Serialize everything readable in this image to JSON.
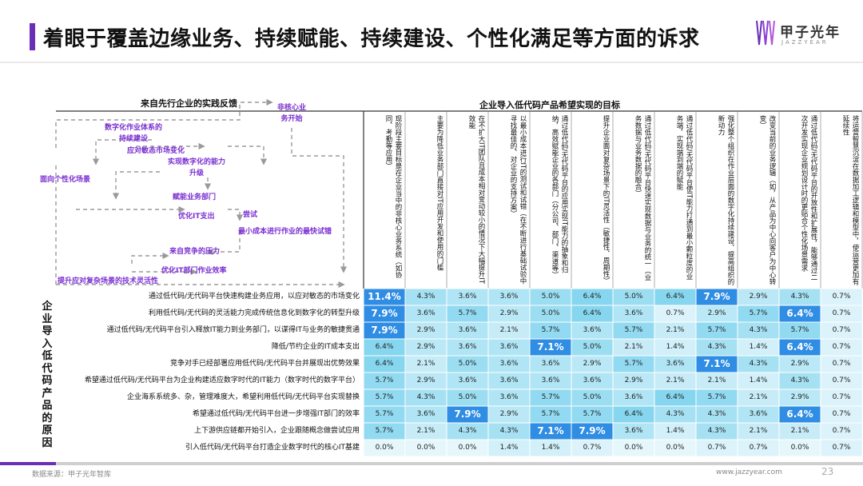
{
  "page": {
    "title": "着眼于覆盖边缘业务、持续赋能、持续建设、个性化满足等方面的诉求",
    "brand": "甲子光年",
    "brand_sub": "JAZZYEAR",
    "source": "数据来源：甲子光年智库",
    "url": "www.jazzyear.com",
    "page_number": "23",
    "accent": "#6b2fb6"
  },
  "flow": {
    "title": "来自先行企业的实践反馈",
    "labels": [
      "非核心业\n务开始",
      "数字化作业体系的\n持续建设",
      "应对敏态市场变化",
      "实现数字化的能力\n升级",
      "面向个性化场景",
      "赋能业务部门",
      "优化IT支出",
      "尝试",
      "最小成本进行作业的最快试错",
      "来自竞争的压力",
      "优化IT部门作业效率",
      "提升应对复杂场景的技术灵活性"
    ],
    "label_color": "#7a2fd1"
  },
  "chart_data": {
    "type": "heatmap",
    "title": "企业导入低代码产品希望实现的目标",
    "row_axis_label": "企业导入低代码产品的原因",
    "columns": [
      "现阶段主要目标是在企业当中的非核心业务系统（如协同、考勤等应用）",
      "主要为降低业务部门直接对IT应用开发和使用的门槛",
      "在不扩大IT团队且成本相对变动较小的情况下大幅提升IT效能",
      "以最小成本进行IT的测试和试错（在不断进行基础试验中寻找最佳的、对企业的支持方案）",
      "通过低代码/无代码平台的应用实现IT能力的抽象和归纳，高效赋能企业的各部门（分公司、部门、渠道等）",
      "提升企业面对复杂场景下的IT灵活性（敏捷性、周期性）",
      "通过低代码/无代码平台快速实现数据与业务的统一（业务数据与业务数据的融合）",
      "通过低代码/无代码平台使IT能力打通到最小颗粒度的业务端，实现端到端的赋能",
      "强化整个组织在作业层面的数字化持续建设、提高组织的新动力",
      "改变当前的业务逻辑（如，从产品为中心向客户为中心转变）",
      "通过低代码/无代码平台的开放性和扩展性，能够通过二次开发实现企业规划设计时的更贴合个性化场景需求",
      "将运营智慧沉淀在数据加工逻辑和模型中，使运营更加有延续性"
    ],
    "rows": [
      "通过低代码/无代码平台快速构建业务应用，以应对敏态的市场变化",
      "利用低代码/无代码的灵活能力完成传统信息化到数字化的转型升级",
      "通过低代码/无代码平台引入释放IT能力到业务部门，以谋得IT与业务的敏捷贯通",
      "降低/节约企业的IT成本支出",
      "竞争对手已经部署应用低代码/无代码平台并展现出优势效果",
      "希望通过低代码/无代码平台为企业构建适应数字时代的IT能力（数字时代的数字平台）",
      "企业海系系统多、杂，管理难度大，希望利用低代码/无代码平台实现替换",
      "希望通过低代码/无代码平台进一步增强IT部门的效率",
      "上下游供应链都开始引入，企业跟随概念做尝试应用",
      "引入低代码/无代码平台打造企业数字时代的核心IT基建"
    ],
    "values": [
      [
        11.4,
        4.3,
        3.6,
        3.6,
        5.0,
        6.4,
        5.0,
        6.4,
        7.9,
        2.9,
        4.3,
        0.7
      ],
      [
        7.9,
        3.6,
        5.7,
        2.9,
        5.0,
        6.4,
        3.6,
        0.7,
        2.9,
        5.7,
        6.4,
        0.7
      ],
      [
        7.9,
        2.9,
        3.6,
        2.1,
        5.7,
        3.6,
        5.7,
        2.1,
        5.7,
        4.3,
        5.7,
        0.7
      ],
      [
        6.4,
        2.9,
        3.6,
        3.6,
        7.1,
        5.0,
        2.1,
        1.4,
        4.3,
        1.4,
        6.4,
        0.7
      ],
      [
        6.4,
        2.1,
        5.0,
        3.6,
        3.6,
        2.9,
        5.7,
        3.6,
        7.1,
        4.3,
        2.9,
        0.7
      ],
      [
        5.7,
        2.9,
        3.6,
        3.6,
        3.6,
        3.6,
        2.9,
        2.1,
        2.1,
        1.4,
        4.3,
        0.7
      ],
      [
        5.7,
        4.3,
        5.0,
        3.6,
        5.7,
        5.0,
        3.6,
        6.4,
        5.7,
        2.1,
        2.9,
        0.7
      ],
      [
        5.7,
        3.6,
        7.9,
        2.9,
        5.7,
        5.7,
        6.4,
        4.3,
        4.3,
        3.6,
        6.4,
        0.7
      ],
      [
        5.7,
        2.1,
        4.3,
        4.3,
        7.1,
        7.9,
        3.6,
        1.4,
        4.3,
        2.1,
        2.1,
        0.7
      ],
      [
        0.0,
        0.0,
        0.0,
        1.4,
        1.4,
        0.7,
        0.0,
        0.0,
        0.7,
        0.7,
        0.0,
        0.7
      ]
    ],
    "highlights": [
      [
        0,
        0
      ],
      [
        0,
        8
      ],
      [
        1,
        0
      ],
      [
        1,
        10
      ],
      [
        2,
        0
      ],
      [
        3,
        4
      ],
      [
        3,
        10
      ],
      [
        4,
        8
      ],
      [
        7,
        2
      ],
      [
        7,
        10
      ],
      [
        8,
        4
      ],
      [
        8,
        5
      ]
    ],
    "value_format": "percent_1dp",
    "colors": {
      "highlight": "#2f8de4",
      "low": "#e6f7fc",
      "high": "#3bbde5",
      "highlight_text": "#ffffff"
    }
  }
}
